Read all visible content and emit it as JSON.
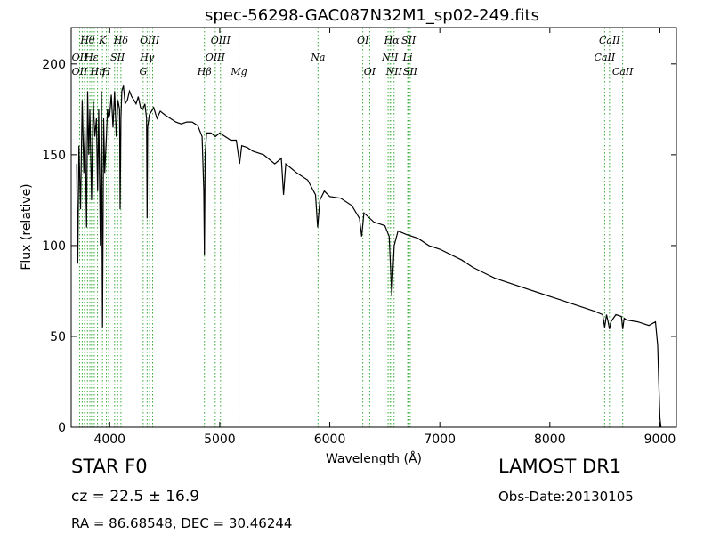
{
  "chart_data": {
    "type": "line",
    "title": "spec-56298-GAC087N32M1_sp02-249.fits",
    "xlabel": "Wavelength (Å)",
    "ylabel": "Flux (relative)",
    "xlim": [
      3650,
      9150
    ],
    "ylim": [
      0,
      220
    ],
    "xticks": [
      4000,
      5000,
      6000,
      7000,
      8000,
      9000
    ],
    "yticks": [
      0,
      50,
      100,
      150,
      200
    ],
    "grid": false,
    "line_color": "#000000",
    "marker_color": "#33aa33",
    "series": [
      {
        "x": [
          3700,
          3710,
          3720,
          3735,
          3750,
          3765,
          3775,
          3790,
          3800,
          3810,
          3820,
          3835,
          3850,
          3865,
          3880,
          3890,
          3900,
          3915,
          3925,
          3935,
          3945,
          3955,
          3970,
          3980,
          3990,
          4000,
          4015,
          4030,
          4045,
          4060,
          4075,
          4090,
          4095,
          4102,
          4110,
          4125,
          4140,
          4160,
          4180,
          4200,
          4220,
          4240,
          4260,
          4280,
          4300,
          4320,
          4335,
          4340,
          4345,
          4360,
          4380,
          4400,
          4430,
          4460,
          4500,
          4550,
          4600,
          4650,
          4700,
          4750,
          4800,
          4840,
          4855,
          4861,
          4867,
          4880,
          4920,
          4960,
          5000,
          5050,
          5100,
          5150,
          5180,
          5200,
          5250,
          5300,
          5400,
          5500,
          5560,
          5580,
          5600,
          5700,
          5800,
          5870,
          5890,
          5910,
          5950,
          6000,
          6100,
          6200,
          6270,
          6290,
          6310,
          6400,
          6500,
          6540,
          6563,
          6585,
          6620,
          6700,
          6800,
          6900,
          7000,
          7100,
          7200,
          7300,
          7400,
          7500,
          7600,
          7700,
          7800,
          7900,
          8000,
          8100,
          8200,
          8300,
          8400,
          8480,
          8498,
          8515,
          8530,
          8542,
          8555,
          8600,
          8650,
          8662,
          8675,
          8700,
          8800,
          8900,
          8960,
          8980,
          8990,
          9000,
          9010
        ],
        "y": [
          145,
          90,
          155,
          120,
          180,
          140,
          165,
          110,
          185,
          150,
          175,
          125,
          180,
          160,
          170,
          130,
          175,
          100,
          185,
          55,
          170,
          140,
          160,
          175,
          170,
          172,
          183,
          165,
          185,
          160,
          180,
          175,
          120,
          170,
          185,
          188,
          178,
          180,
          185,
          182,
          180,
          178,
          182,
          176,
          175,
          178,
          170,
          115,
          165,
          172,
          174,
          176,
          170,
          174,
          172,
          170,
          168,
          167,
          168,
          168,
          166,
          160,
          130,
          95,
          150,
          162,
          162,
          160,
          162,
          160,
          158,
          158,
          145,
          155,
          154,
          152,
          150,
          145,
          148,
          128,
          145,
          140,
          136,
          128,
          110,
          125,
          130,
          127,
          126,
          122,
          115,
          105,
          118,
          113,
          111,
          105,
          72,
          100,
          108,
          106,
          104,
          100,
          98,
          95,
          92,
          88,
          85,
          82,
          80,
          78,
          76,
          74,
          72,
          70,
          68,
          66,
          64,
          62,
          55,
          62,
          58,
          54,
          58,
          62,
          61,
          54,
          60,
          59,
          58,
          56,
          58,
          45,
          25,
          5,
          0
        ]
      }
    ],
    "spectral_lines": [
      {
        "label": "Hθ",
        "x": 3798,
        "row": 1
      },
      {
        "label": "K",
        "x": 3934,
        "row": 1
      },
      {
        "label": "Hδ",
        "x": 4102,
        "row": 1
      },
      {
        "label": "OIII",
        "x": 4363,
        "row": 1
      },
      {
        "label": "OIII",
        "x": 5007,
        "row": 1
      },
      {
        "label": "OI",
        "x": 6300,
        "row": 1
      },
      {
        "label": "Hα",
        "x": 6563,
        "row": 1
      },
      {
        "label": "SII",
        "x": 6716,
        "row": 1
      },
      {
        "label": "CaII",
        "x": 8542,
        "row": 1
      },
      {
        "label": "OII",
        "x": 3727,
        "row": 2
      },
      {
        "label": "Hε",
        "x": 3835,
        "row": 2
      },
      {
        "label": "SII",
        "x": 4072,
        "row": 2
      },
      {
        "label": "Hγ",
        "x": 4340,
        "row": 2
      },
      {
        "label": "OIII",
        "x": 4959,
        "row": 2
      },
      {
        "label": "Na",
        "x": 5893,
        "row": 2
      },
      {
        "label": "NII",
        "x": 6548,
        "row": 2
      },
      {
        "label": "Li",
        "x": 6708,
        "row": 2
      },
      {
        "label": "CaII",
        "x": 8498,
        "row": 2
      },
      {
        "label": "OII",
        "x": 3727,
        "row": 3
      },
      {
        "label": "Hη",
        "x": 3889,
        "row": 3
      },
      {
        "label": "H",
        "x": 3970,
        "row": 3
      },
      {
        "label": "G",
        "x": 4304,
        "row": 3
      },
      {
        "label": "Hβ",
        "x": 4861,
        "row": 3
      },
      {
        "label": "Mg",
        "x": 5175,
        "row": 3
      },
      {
        "label": "OI",
        "x": 6363,
        "row": 3
      },
      {
        "label": "NII",
        "x": 6584,
        "row": 3
      },
      {
        "label": "SII",
        "x": 6731,
        "row": 3
      },
      {
        "label": "CaII",
        "x": 8662,
        "row": 3
      }
    ],
    "extra_markers": [
      3750,
      3771,
      3820,
      3860,
      3990,
      4045,
      4390,
      6530,
      6720
    ]
  },
  "info": {
    "object_class": "STAR   F0",
    "cz": "cz = 22.5  ± 16.9",
    "radec": "RA = 86.68548, DEC = 30.46244",
    "survey": "LAMOST DR1",
    "obs_date": "Obs-Date:20130105"
  }
}
